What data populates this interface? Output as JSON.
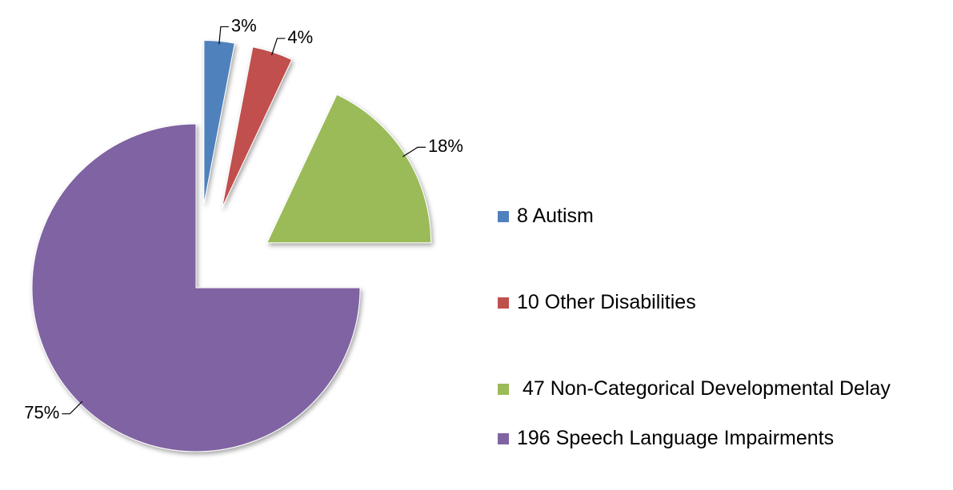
{
  "chart_data": {
    "type": "pie",
    "categories": [
      "8 Autism",
      "10 Other Disabilities",
      " 47 Non-Categorical Developmental Delay",
      "196 Speech Language Impairments"
    ],
    "values": [
      3,
      4,
      18,
      75
    ],
    "value_labels": [
      "3%",
      "4%",
      "18%",
      "75%"
    ],
    "colors": [
      "#4f81bd",
      "#c0504d",
      "#9bbb59",
      "#8064a2"
    ],
    "legend": "right"
  }
}
